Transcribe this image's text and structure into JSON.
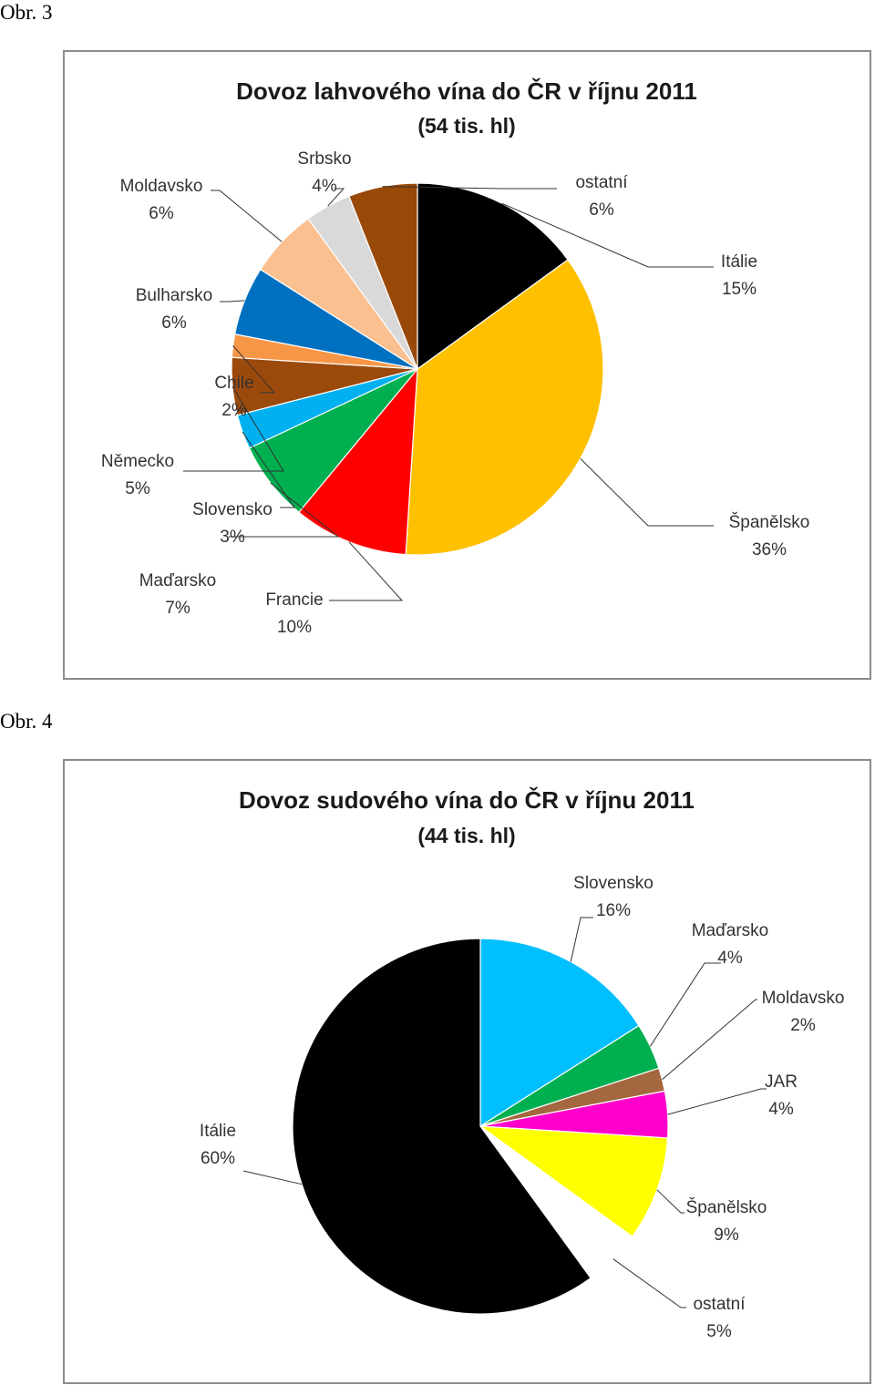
{
  "captions": [
    "Obr. 3",
    "Obr. 4"
  ],
  "chart_data": [
    {
      "type": "pie",
      "title": "Dovoz lahvového vína do ČR v říjnu 2011",
      "subtitle": "(54 tis. hl)",
      "slices": [
        {
          "label": "Itálie",
          "pct_text": "15%",
          "value": 15,
          "color": "#000000"
        },
        {
          "label": "Španělsko",
          "pct_text": "36%",
          "value": 36,
          "color": "#FFC000"
        },
        {
          "label": "Francie",
          "pct_text": "10%",
          "value": 10,
          "color": "#FF0000"
        },
        {
          "label": "Maďarsko",
          "pct_text": "7%",
          "value": 7,
          "color": "#00B050"
        },
        {
          "label": "Slovensko",
          "pct_text": "3%",
          "value": 3,
          "color": "#00B0F0"
        },
        {
          "label": "Německo",
          "pct_text": "5%",
          "value": 5,
          "color": "#9C4A0C"
        },
        {
          "label": "Chile",
          "pct_text": "2%",
          "value": 2,
          "color": "#F79646"
        },
        {
          "label": "Bulharsko",
          "pct_text": "6%",
          "value": 6,
          "color": "#0070C0"
        },
        {
          "label": "Moldavsko",
          "pct_text": "6%",
          "value": 6,
          "color": "#FAC090"
        },
        {
          "label": "Srbsko",
          "pct_text": "4%",
          "value": 4,
          "color": "#D9D9D9"
        },
        {
          "label": "ostatní",
          "pct_text": "6%",
          "value": 6,
          "color": "#984807"
        }
      ]
    },
    {
      "type": "pie",
      "title": "Dovoz sudového vína do ČR v říjnu 2011",
      "subtitle": "(44 tis. hl)",
      "slices": [
        {
          "label": "Slovensko",
          "pct_text": "16%",
          "value": 16,
          "color": "#00BFFF"
        },
        {
          "label": "Maďarsko",
          "pct_text": "4%",
          "value": 4,
          "color": "#00B050"
        },
        {
          "label": "Moldavsko",
          "pct_text": "2%",
          "value": 2,
          "color": "#A5673F"
        },
        {
          "label": "JAR",
          "pct_text": "4%",
          "value": 4,
          "color": "#FF00CC"
        },
        {
          "label": "Španělsko",
          "pct_text": "9%",
          "value": 9,
          "color": "#FFFF00"
        },
        {
          "label": "ostatní",
          "pct_text": "5%",
          "value": 5,
          "color": "#FFFFFF"
        },
        {
          "label": "Itálie",
          "pct_text": "60%",
          "value": 60,
          "color": "#000000"
        }
      ]
    }
  ]
}
